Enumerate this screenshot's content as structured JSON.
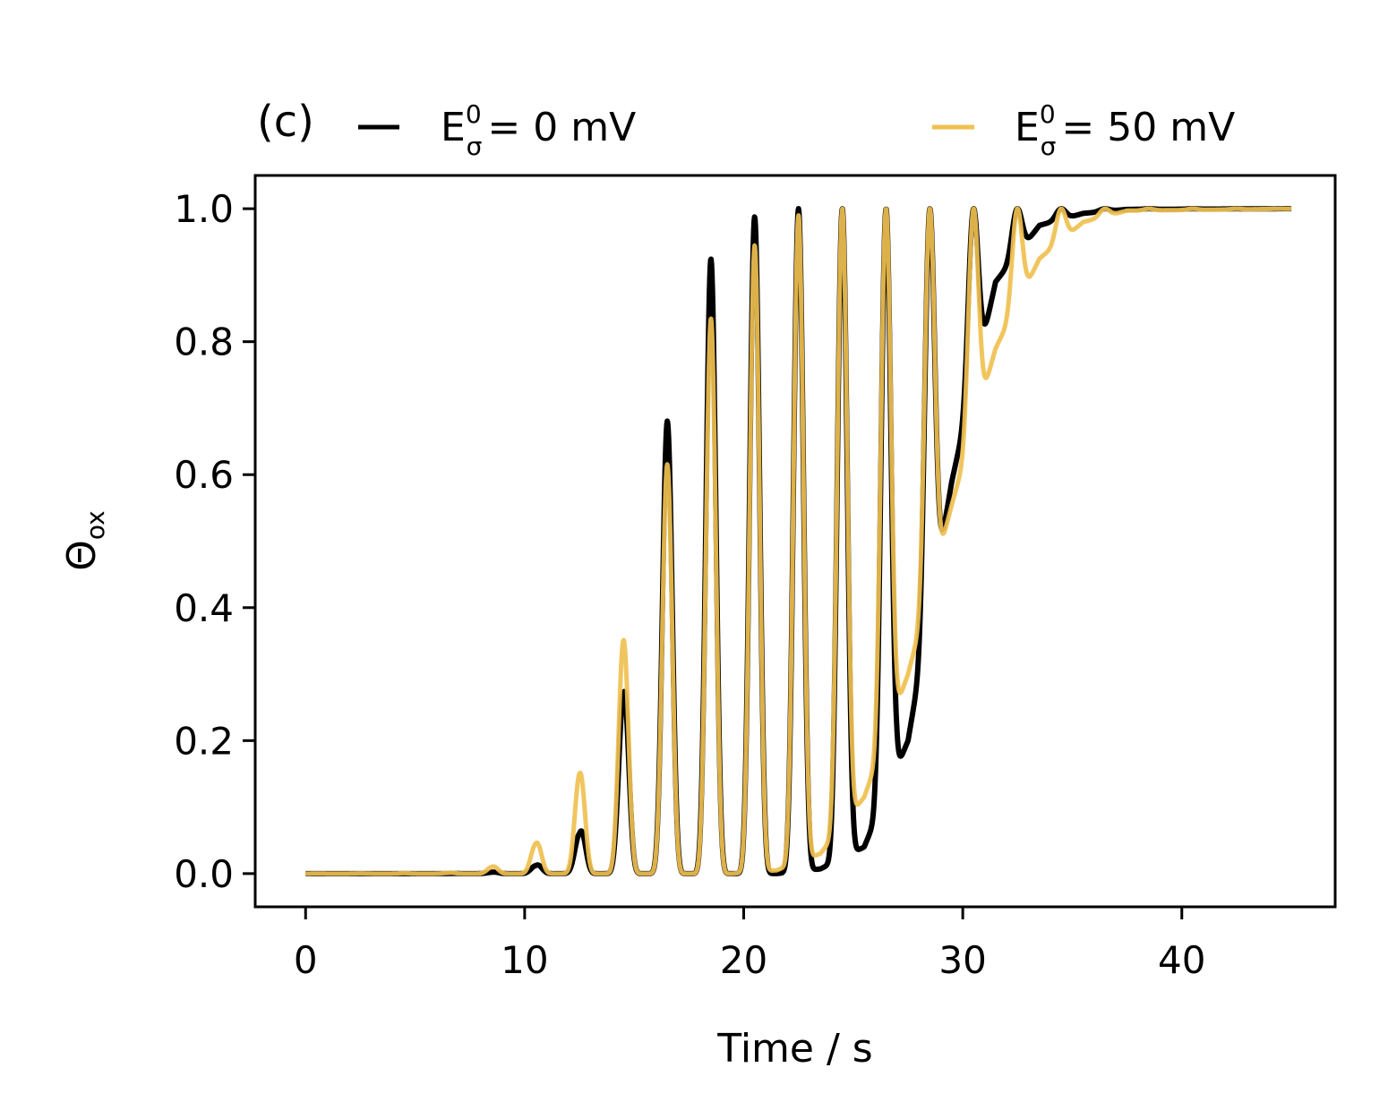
{
  "chart_data": {
    "type": "line",
    "panel_label": "(c)",
    "title": "",
    "xlabel": "Time / s",
    "ylabel": {
      "symbol": "Θ",
      "subscript": "ox"
    },
    "xlim": [
      -2.3,
      47
    ],
    "ylim": [
      -0.05,
      1.05
    ],
    "xticks": [
      0,
      10,
      20,
      30,
      40
    ],
    "yticks": [
      0.0,
      0.2,
      0.4,
      0.6,
      0.8,
      1.0
    ],
    "xtick_labels": [
      "0",
      "10",
      "20",
      "30",
      "40"
    ],
    "ytick_labels": [
      "0.0",
      "0.2",
      "0.4",
      "0.6",
      "0.8",
      "1.0"
    ],
    "grid": false,
    "legend_position": "top, above plot",
    "series": [
      {
        "name": "E = 0 mV",
        "legend": {
          "base": "E",
          "sup": "0",
          "sub": "σ",
          "value": "= 0 mV"
        },
        "color": "#000000",
        "x": [
          0,
          6.5,
          8.5,
          10.5,
          12.5,
          14.5,
          16.5,
          18.5,
          20.5,
          22.5,
          24.5,
          26.5,
          28.5,
          30.5,
          32.5,
          34.5,
          36.5,
          38.5,
          40.5,
          45
        ],
        "y": [
          0.0,
          0.0,
          0.002,
          0.012,
          0.06,
          0.27,
          0.68,
          0.925,
          0.988,
          1.0,
          1.0,
          1.0,
          1.0,
          1.0,
          1.0,
          1.0,
          1.0,
          1.0,
          1.0,
          1.0
        ],
        "trough_x": [
          13.5,
          15.5,
          17.5,
          19.5,
          21.5,
          23.5,
          25.5,
          27.5,
          29.5,
          31.5,
          33.5,
          35.5,
          37.5
        ],
        "trough_y": [
          0.0,
          0.0,
          0.0,
          0.0,
          0.0,
          0.007,
          0.04,
          0.2,
          0.59,
          0.89,
          0.975,
          0.993,
          0.999
        ]
      },
      {
        "name": "E = 50 mV",
        "legend": {
          "base": "E",
          "sup": "0",
          "sub": "σ",
          "value": "= 50 mV"
        },
        "color": "#f0c050",
        "x": [
          0,
          6.5,
          8.5,
          10.5,
          12.5,
          14.5,
          16.5,
          18.5,
          20.5,
          22.5,
          24.5,
          26.5,
          28.5,
          30.5,
          32.5,
          34.5,
          36.5,
          38.5,
          40.5,
          45
        ],
        "y": [
          0.0,
          0.001,
          0.01,
          0.045,
          0.15,
          0.35,
          0.615,
          0.835,
          0.945,
          0.99,
          1.0,
          1.0,
          1.0,
          1.0,
          1.0,
          1.0,
          1.0,
          1.0,
          1.0,
          1.0
        ],
        "trough_x": [
          13.5,
          15.5,
          17.5,
          19.5,
          21.5,
          23.5,
          25.5,
          27.5,
          29.5,
          31.5,
          33.5,
          35.5,
          37.5
        ],
        "trough_y": [
          0.0,
          0.0,
          0.0,
          0.0,
          0.005,
          0.03,
          0.115,
          0.3,
          0.555,
          0.79,
          0.925,
          0.98,
          0.997
        ]
      }
    ]
  }
}
